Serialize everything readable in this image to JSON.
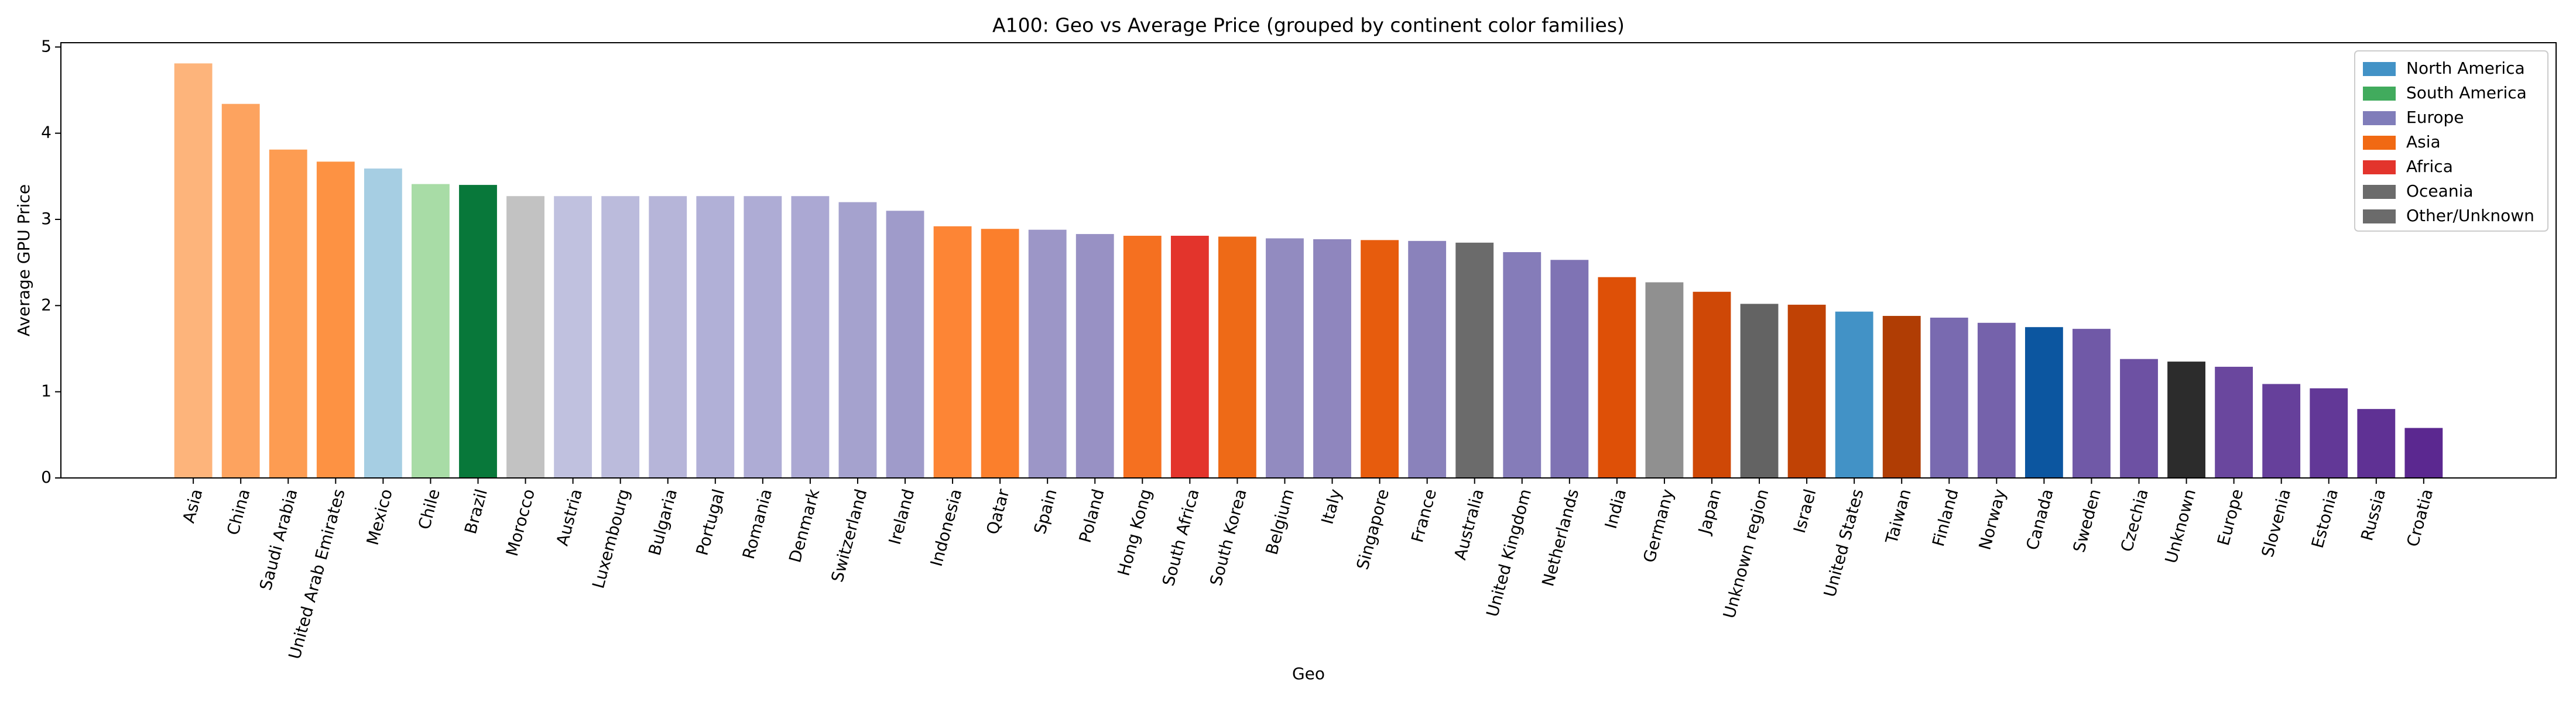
{
  "chart_data": {
    "type": "bar",
    "title": "A100: Geo vs Average Price (grouped by continent color families)",
    "x_label": "Geo",
    "y_label": "Average GPU Price",
    "categories": [
      "Asia",
      "China",
      "Saudi Arabia",
      "United Arab Emirates",
      "Mexico",
      "Chile",
      "Brazil",
      "Morocco",
      "Austria",
      "Luxembourg",
      "Bulgaria",
      "Portugal",
      "Romania",
      "Denmark",
      "Switzerland",
      "Ireland",
      "Indonesia",
      "Qatar",
      "Spain",
      "Poland",
      "Hong Kong",
      "South Africa",
      "South Korea",
      "Belgium",
      "Italy",
      "Singapore",
      "France",
      "Australia",
      "United Kingdom",
      "Netherlands",
      "India",
      "Germany",
      "Japan",
      "Unknown region",
      "Israel",
      "United States",
      "Taiwan",
      "Finland",
      "Norway",
      "Canada",
      "Sweden",
      "Czechia",
      "Unknown",
      "Europe",
      "Slovenia",
      "Estonia",
      "Russia",
      "Croatia"
    ],
    "values": [
      4.81,
      4.34,
      3.81,
      3.67,
      3.59,
      3.41,
      3.4,
      3.27,
      3.27,
      3.27,
      3.27,
      3.27,
      3.27,
      3.27,
      3.2,
      3.1,
      2.92,
      2.89,
      2.88,
      2.83,
      2.81,
      2.81,
      2.8,
      2.78,
      2.77,
      2.76,
      2.75,
      2.73,
      2.62,
      2.53,
      2.33,
      2.27,
      2.16,
      2.02,
      2.01,
      1.93,
      1.88,
      1.86,
      1.8,
      1.75,
      1.73,
      1.38,
      1.35,
      1.29,
      1.09,
      1.04,
      0.8,
      0.58
    ],
    "colors": [
      "#fdb47b",
      "#fda35f",
      "#fd9c52",
      "#fd9243",
      "#a6cee3",
      "#a8dca6",
      "#08783a",
      "#c2c2c2",
      "#c0c1df",
      "#bbbbdc",
      "#b6b5d9",
      "#b1b0d7",
      "#aeacd5",
      "#aba8d3",
      "#a5a2ce",
      "#9f9bca",
      "#fd8535",
      "#fb7f2c",
      "#9c96c7",
      "#9891c4",
      "#f57020",
      "#e3342c",
      "#ee6a17",
      "#928bc0",
      "#8f86be",
      "#e75c0d",
      "#8a82bb",
      "#6b6b6b",
      "#857cb9",
      "#7f73b4",
      "#de5007",
      "#909090",
      "#cf4806",
      "#636363",
      "#c04205",
      "#4292c6",
      "#b03d04",
      "#796ab0",
      "#7562ab",
      "#0c56a0",
      "#7059a7",
      "#6d51a3",
      "#2c2c2c",
      "#6a479e",
      "#66409b",
      "#623897",
      "#5f3194",
      "#5b2890"
    ],
    "ylim": [
      0,
      5.05
    ],
    "yticks": [
      0,
      1,
      2,
      3,
      4,
      5
    ],
    "legend_position": "upper right",
    "legend": [
      {
        "name": "North America",
        "color": "#4292c6"
      },
      {
        "name": "South America",
        "color": "#41ab5d"
      },
      {
        "name": "Europe",
        "color": "#807dba"
      },
      {
        "name": "Asia",
        "color": "#f16913"
      },
      {
        "name": "Africa",
        "color": "#e3342c"
      },
      {
        "name": "Oceania",
        "color": "#6b6b6b"
      },
      {
        "name": "Other/Unknown",
        "color": "#6b6b6b"
      }
    ]
  }
}
